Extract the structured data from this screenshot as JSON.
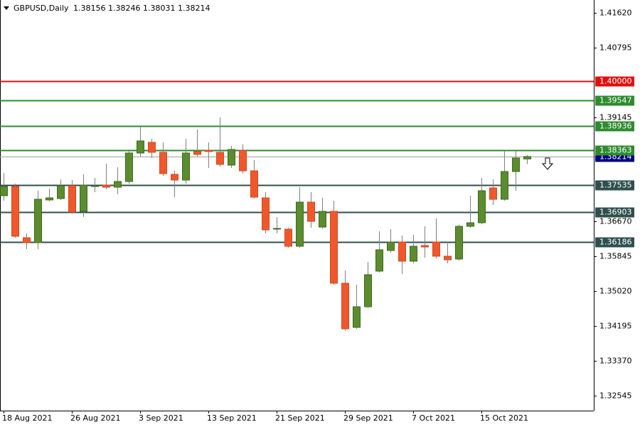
{
  "chart_data": {
    "type": "candlestick",
    "title": "GBPUSD,Daily",
    "categories": [
      "18 Aug 2021",
      null,
      null,
      null,
      null,
      null,
      "26 Aug 2021",
      null,
      null,
      null,
      null,
      null,
      "3 Sep 2021",
      null,
      null,
      null,
      null,
      null,
      "13 Sep 2021",
      null,
      null,
      null,
      null,
      null,
      "21 Sep 2021",
      null,
      null,
      null,
      null,
      null,
      "29 Sep 2021",
      null,
      null,
      null,
      null,
      null,
      "7 Oct 2021",
      null,
      null,
      null,
      null,
      null,
      "15 Oct 2021",
      null,
      null,
      null,
      null
    ],
    "open": [
      1.37285,
      1.37504,
      1.36289,
      1.36171,
      1.37184,
      1.37217,
      1.37521,
      1.36914,
      1.37504,
      1.37538,
      1.37487,
      1.37622,
      1.38297,
      1.3855,
      1.38314,
      1.37791,
      1.37656,
      1.38331,
      1.38364,
      1.38314,
      1.3801,
      1.38364,
      1.37875,
      1.37234,
      1.36492,
      1.36492,
      1.36087,
      1.37133,
      1.36542,
      1.36914,
      1.3521,
      1.34164,
      1.34653,
      1.35497,
      1.35986,
      1.36188,
      1.35733,
      1.36104,
      1.36188,
      1.35851,
      1.35783,
      1.36559,
      1.36644,
      1.3747,
      1.372,
      1.37858,
      1.38156
    ],
    "high": [
      1.37825,
      1.37572,
      1.36391,
      1.37403,
      1.37453,
      1.37673,
      1.37656,
      1.37791,
      1.37706,
      1.38044,
      1.3796,
      1.38381,
      1.38938,
      1.38634,
      1.3855,
      1.37875,
      1.38634,
      1.38854,
      1.3855,
      1.3914,
      1.38466,
      1.38499,
      1.38128,
      1.37369,
      1.36779,
      1.36526,
      1.37487,
      1.37369,
      1.37234,
      1.37167,
      1.35513,
      1.35176,
      1.35716,
      1.36441,
      1.36492,
      1.3634,
      1.36357,
      1.36559,
      1.36745,
      1.36188,
      1.36593,
      1.37285,
      1.37706,
      1.37673,
      1.38348,
      1.38348,
      1.38246
    ],
    "low": [
      1.37167,
      1.36289,
      1.36019,
      1.36019,
      1.3715,
      1.37184,
      1.36863,
      1.36779,
      1.37369,
      1.37437,
      1.37318,
      1.37572,
      1.38213,
      1.38179,
      1.37757,
      1.37251,
      1.37572,
      1.38213,
      1.37943,
      1.37976,
      1.37943,
      1.37808,
      1.37217,
      1.36391,
      1.36391,
      1.36053,
      1.36053,
      1.36526,
      1.36509,
      1.35176,
      1.34079,
      1.3413,
      1.34619,
      1.35463,
      1.35935,
      1.35429,
      1.35682,
      1.35817,
      1.358,
      1.35682,
      1.3575,
      1.36526,
      1.3661,
      1.37065,
      1.37167,
      1.37403,
      1.38031
    ],
    "close": [
      1.37504,
      1.36323,
      1.36171,
      1.372,
      1.37234,
      1.37521,
      1.36897,
      1.37538,
      1.37521,
      1.37487,
      1.37622,
      1.38297,
      1.38584,
      1.38314,
      1.37808,
      1.37656,
      1.38297,
      1.38263,
      1.38331,
      1.38027,
      1.38381,
      1.37875,
      1.37251,
      1.36475,
      1.36509,
      1.36087,
      1.37133,
      1.36677,
      1.36914,
      1.3521,
      1.3413,
      1.34653,
      1.35412,
      1.36003,
      1.36188,
      1.35733,
      1.36087,
      1.3607,
      1.35851,
      1.35766,
      1.36559,
      1.36644,
      1.37403,
      1.372,
      1.37858,
      1.38179,
      1.38214
    ],
    "up_color": "#5b8c2e",
    "down_color": "#f0582c",
    "current_price_color": "#000080",
    "ylim": [
      1.3219,
      1.41924
    ],
    "yticks": [
      {
        "value": 1.4162,
        "label": "1.41620"
      },
      1.40795,
      1.39145,
      {
        "value": 1.3667,
        "label": "1.36670"
      },
      1.35845,
      {
        "value": 1.3502,
        "label": "1.35020"
      },
      1.34195,
      {
        "value": 1.3337,
        "label": "1.33370"
      },
      1.32545
    ],
    "levels": [
      {
        "value": 1.4,
        "label": "1.40000",
        "color": "#e01010"
      },
      {
        "value": 1.39547,
        "label": "1.39547",
        "color": "#2e8b2e"
      },
      {
        "value": 1.38936,
        "label": "1.38936",
        "color": "#2e8b2e"
      },
      {
        "value": 1.38363,
        "label": "1.38363",
        "color": "#2e8b2e"
      },
      {
        "value": 1.37535,
        "label": "1.37535",
        "color": "#2f4f4f"
      },
      {
        "value": 1.36903,
        "label": "1.36903",
        "color": "#2f4f4f"
      },
      {
        "value": 1.36186,
        "label": "1.36186",
        "color": "#2f4f4f"
      }
    ]
  }
}
